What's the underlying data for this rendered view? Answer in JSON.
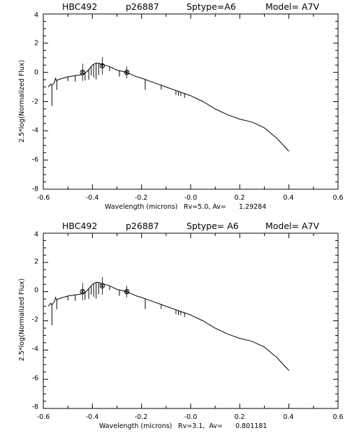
{
  "chart_data": [
    {
      "type": "line",
      "title_items": [
        "HBC492",
        "p26887",
        "Sptype=A6",
        "Model= A7V"
      ],
      "xlabel": "Wavelength (microns)",
      "xlabel_suffix": "Rv=5.0, Av=      1.29284",
      "ylabel": "2.5*log(Normalized Flux)",
      "xlim": [
        -0.6,
        0.6
      ],
      "ylim": [
        -8,
        4
      ],
      "xticks": [
        "-0.6",
        "-0.4",
        "-0.2",
        "-0.0",
        "0.2",
        "0.4",
        "0.6"
      ],
      "yticks": [
        "-8",
        "-6",
        "-4",
        "-2",
        "0",
        "2",
        "4"
      ],
      "model_series": {
        "x": [
          -0.58,
          -0.57,
          -0.565,
          -0.555,
          -0.55,
          -0.545,
          -0.54,
          -0.53,
          -0.52,
          -0.51,
          -0.5,
          -0.48,
          -0.46,
          -0.44,
          -0.43,
          -0.42,
          -0.41,
          -0.4,
          -0.39,
          -0.38,
          -0.37,
          -0.36,
          -0.35,
          -0.33,
          -0.3,
          -0.26,
          -0.22,
          -0.2,
          -0.15,
          -0.1,
          -0.05,
          0.0,
          0.05,
          0.1,
          0.15,
          0.2,
          0.25,
          0.3,
          0.35,
          0.4
        ],
        "y": [
          -1.0,
          -0.8,
          -0.9,
          -0.7,
          -0.4,
          -0.6,
          -0.5,
          -0.45,
          -0.4,
          -0.35,
          -0.3,
          -0.25,
          -0.2,
          -0.15,
          -0.05,
          0.1,
          0.3,
          0.5,
          0.6,
          0.65,
          0.6,
          0.55,
          0.5,
          0.4,
          0.15,
          0.0,
          -0.3,
          -0.4,
          -0.7,
          -1.0,
          -1.3,
          -1.6,
          -2.0,
          -2.5,
          -2.9,
          -3.2,
          -3.4,
          -3.8,
          -4.5,
          -5.4
        ]
      },
      "absorption_lines": [
        {
          "x": -0.565,
          "depth": 1.4
        },
        {
          "x": -0.545,
          "depth": 0.6
        },
        {
          "x": -0.5,
          "depth": 0.3
        },
        {
          "x": -0.47,
          "depth": 0.4
        },
        {
          "x": -0.43,
          "depth": 0.5
        },
        {
          "x": -0.415,
          "depth": 0.7
        },
        {
          "x": -0.405,
          "depth": 0.6
        },
        {
          "x": -0.395,
          "depth": 0.9
        },
        {
          "x": -0.385,
          "depth": 1.1
        },
        {
          "x": -0.375,
          "depth": 0.8
        },
        {
          "x": -0.33,
          "depth": 0.3
        },
        {
          "x": -0.29,
          "depth": 0.4
        },
        {
          "x": -0.185,
          "depth": 0.7
        },
        {
          "x": -0.12,
          "depth": 0.3
        },
        {
          "x": -0.06,
          "depth": 0.3
        },
        {
          "x": -0.05,
          "depth": 0.3
        },
        {
          "x": -0.04,
          "depth": 0.25
        },
        {
          "x": -0.025,
          "depth": 0.3
        }
      ],
      "photometry": [
        {
          "x": -0.44,
          "y": 0.0,
          "err": 0.6
        },
        {
          "x": -0.36,
          "y": 0.45,
          "err": 0.6
        },
        {
          "x": -0.26,
          "y": 0.0,
          "err": 0.4
        }
      ]
    },
    {
      "type": "line",
      "title_items": [
        "HBC492",
        "p26887",
        "Sptype= A6",
        "Model= A7V"
      ],
      "xlabel": "Wavelength (microns)",
      "xlabel_suffix": "Rv=3.1,  Av=      0.801181",
      "ylabel": "2.5*log(Normalized Flux)",
      "xlim": [
        -0.6,
        0.6
      ],
      "ylim": [
        -8,
        4
      ],
      "xticks": [
        "-0.6",
        "-0.4",
        "-0.2",
        "-0.0",
        "0.2",
        "0.4",
        "0.6"
      ],
      "yticks": [
        "-8",
        "-6",
        "-4",
        "-2",
        "0",
        "2",
        "4"
      ],
      "model_series": {
        "x": [
          -0.58,
          -0.57,
          -0.565,
          -0.555,
          -0.55,
          -0.545,
          -0.54,
          -0.53,
          -0.52,
          -0.51,
          -0.5,
          -0.48,
          -0.46,
          -0.44,
          -0.43,
          -0.42,
          -0.41,
          -0.4,
          -0.39,
          -0.38,
          -0.37,
          -0.36,
          -0.35,
          -0.33,
          -0.3,
          -0.26,
          -0.22,
          -0.2,
          -0.15,
          -0.1,
          -0.05,
          0.0,
          0.05,
          0.1,
          0.15,
          0.2,
          0.25,
          0.3,
          0.35,
          0.4
        ],
        "y": [
          -1.0,
          -0.8,
          -0.9,
          -0.7,
          -0.4,
          -0.6,
          -0.5,
          -0.45,
          -0.4,
          -0.35,
          -0.3,
          -0.25,
          -0.2,
          -0.15,
          -0.05,
          0.1,
          0.3,
          0.5,
          0.6,
          0.65,
          0.6,
          0.55,
          0.5,
          0.4,
          0.15,
          0.0,
          -0.3,
          -0.4,
          -0.7,
          -1.0,
          -1.3,
          -1.6,
          -2.0,
          -2.5,
          -2.9,
          -3.2,
          -3.4,
          -3.8,
          -4.5,
          -5.4
        ]
      },
      "absorption_lines": [
        {
          "x": -0.565,
          "depth": 1.4
        },
        {
          "x": -0.545,
          "depth": 0.6
        },
        {
          "x": -0.5,
          "depth": 0.3
        },
        {
          "x": -0.47,
          "depth": 0.4
        },
        {
          "x": -0.43,
          "depth": 0.5
        },
        {
          "x": -0.415,
          "depth": 0.7
        },
        {
          "x": -0.405,
          "depth": 0.6
        },
        {
          "x": -0.395,
          "depth": 0.9
        },
        {
          "x": -0.385,
          "depth": 1.1
        },
        {
          "x": -0.375,
          "depth": 0.8
        },
        {
          "x": -0.33,
          "depth": 0.3
        },
        {
          "x": -0.29,
          "depth": 0.4
        },
        {
          "x": -0.185,
          "depth": 0.7
        },
        {
          "x": -0.12,
          "depth": 0.3
        },
        {
          "x": -0.06,
          "depth": 0.3
        },
        {
          "x": -0.05,
          "depth": 0.3
        },
        {
          "x": -0.04,
          "depth": 0.25
        },
        {
          "x": -0.025,
          "depth": 0.3
        }
      ],
      "photometry": [
        {
          "x": -0.44,
          "y": 0.0,
          "err": 0.6
        },
        {
          "x": -0.36,
          "y": 0.4,
          "err": 0.6
        },
        {
          "x": -0.26,
          "y": 0.0,
          "err": 0.4
        }
      ]
    }
  ]
}
